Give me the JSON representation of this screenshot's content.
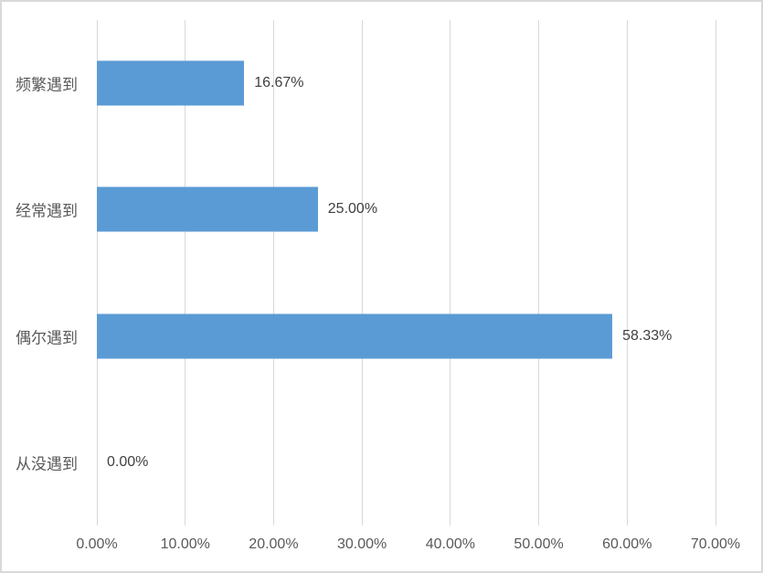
{
  "chart_data": {
    "type": "bar",
    "orientation": "horizontal",
    "title": "",
    "categories": [
      "频繁遇到",
      "经常遇到",
      "偶尔遇到",
      "从没遇到"
    ],
    "values": [
      16.67,
      25.0,
      58.33,
      0.0
    ],
    "data_labels": [
      "16.67%",
      "25.00%",
      "58.33%",
      "0.00%"
    ],
    "x_tick_labels": [
      "0.00%",
      "10.00%",
      "20.00%",
      "30.00%",
      "40.00%",
      "50.00%",
      "60.00%",
      "70.00%"
    ],
    "x_tick_values": [
      0,
      10,
      20,
      30,
      40,
      50,
      60,
      70
    ],
    "xlim": [
      0,
      70
    ],
    "grid": "vertical-major",
    "legend_position": "none",
    "gap_note": "bars centered in 4 equal category bands, top-to-bottom order as listed",
    "colors": {
      "bar": "#5B9BD5",
      "gridline": "#D9D9D9",
      "frame_border": "#D9D9D9",
      "background": "#FFFFFF",
      "axis_text": "#595959",
      "category_text": "#595959",
      "data_label_text": "#404040"
    }
  }
}
